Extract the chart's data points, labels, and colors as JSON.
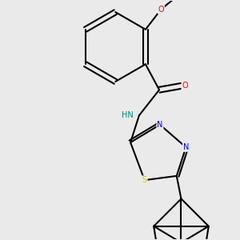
{
  "bg_color": "#eaeaea",
  "bond_color": "#000000",
  "bond_width": 1.5,
  "atom_colors": {
    "O": "#ff0000",
    "N": "#0000ff",
    "S": "#cccc00",
    "NH": "#008888",
    "C": "#000000"
  },
  "figsize": [
    3.0,
    3.0
  ],
  "dpi": 100
}
